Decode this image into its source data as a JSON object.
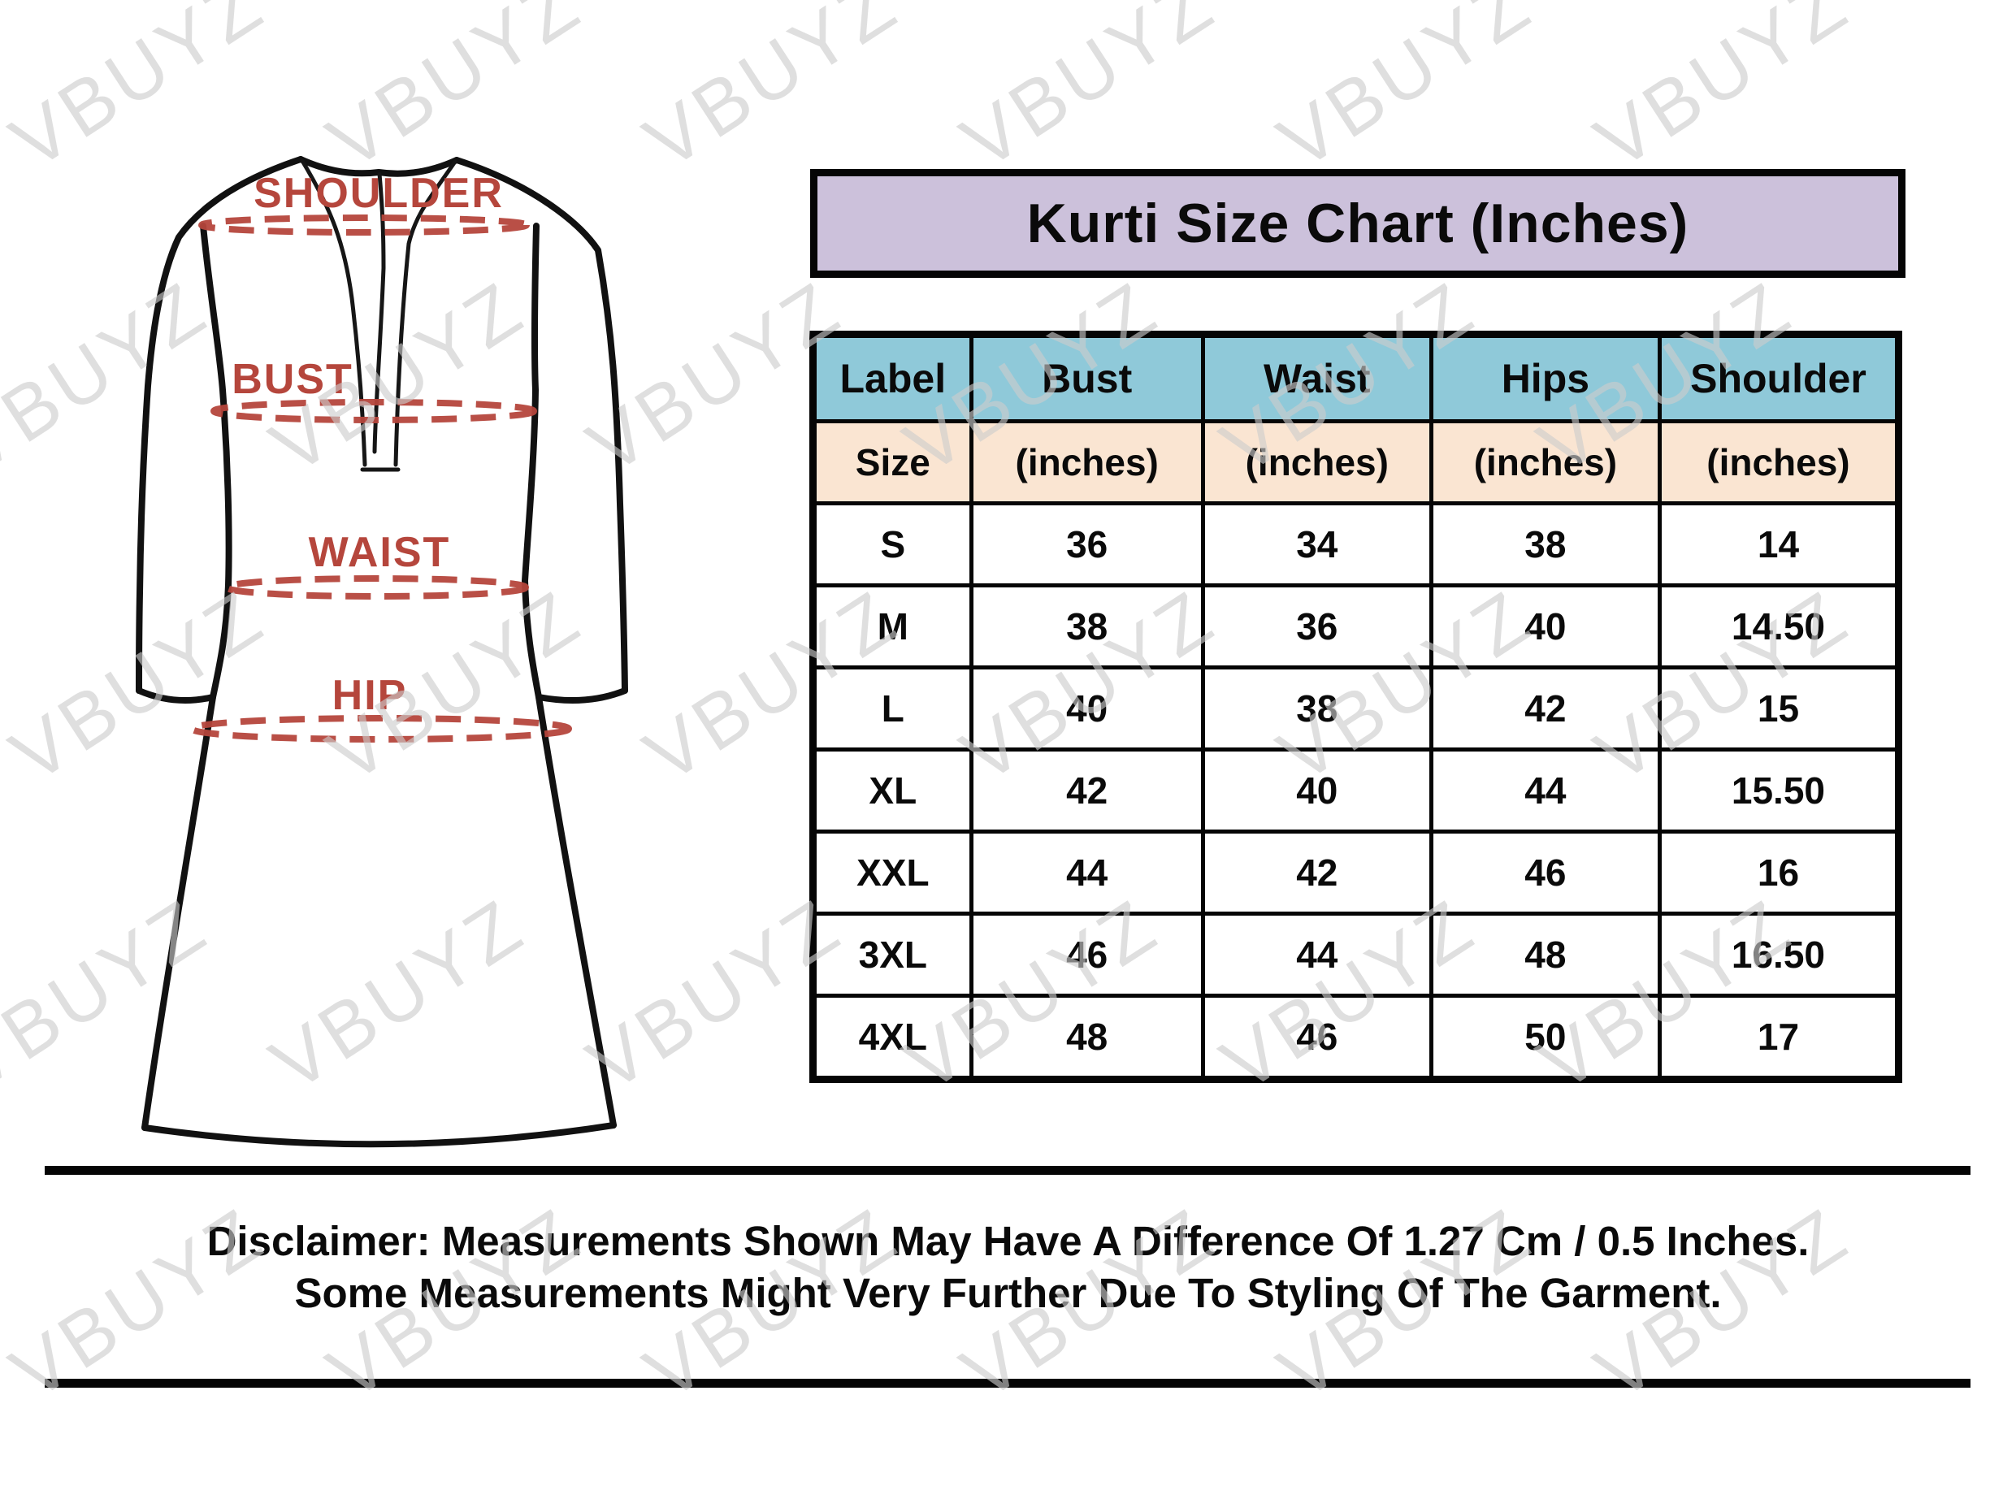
{
  "watermark_text": "VBUYZ",
  "title": "Kurti Size Chart (Inches)",
  "diagram": {
    "shoulder_label": "SHOULDER",
    "bust_label": "BUST",
    "waist_label": "WAIST",
    "hip_label": "HIP"
  },
  "size_chart": {
    "columns": [
      "Label",
      "Bust",
      "Waist",
      "Hips",
      "Shoulder"
    ],
    "subheader": [
      "Size",
      "(inches)",
      "(inches)",
      "(inches)",
      "(inches)"
    ],
    "rows": [
      [
        "S",
        "36",
        "34",
        "38",
        "14"
      ],
      [
        "M",
        "38",
        "36",
        "40",
        "14.50"
      ],
      [
        "L",
        "40",
        "38",
        "42",
        "15"
      ],
      [
        "XL",
        "42",
        "40",
        "44",
        "15.50"
      ],
      [
        "XXL",
        "44",
        "42",
        "46",
        "16"
      ],
      [
        "3XL",
        "46",
        "44",
        "48",
        "16.50"
      ],
      [
        "4XL",
        "48",
        "46",
        "50",
        "17"
      ]
    ]
  },
  "disclaimer": {
    "line1": "Disclaimer: Measurements Shown May Have A Difference Of 1.27 Cm / 0.5 Inches.",
    "line2": "Some Measurements Might Very Further Due To Styling Of The Garment."
  },
  "colors": {
    "title_bg": "#ccc1db",
    "header_bg": "#8fc9d9",
    "subheader_bg": "#fae5d2",
    "border": "#050505",
    "accent_red": "#b5463c",
    "watermark": "#cdcdcd"
  },
  "chart_data": {
    "type": "table",
    "title": "Kurti Size Chart (Inches)",
    "columns": [
      "Label Size",
      "Bust (inches)",
      "Waist (inches)",
      "Hips (inches)",
      "Shoulder (inches)"
    ],
    "rows": [
      [
        "S",
        36,
        34,
        38,
        14
      ],
      [
        "M",
        38,
        36,
        40,
        14.5
      ],
      [
        "L",
        40,
        38,
        42,
        15
      ],
      [
        "XL",
        42,
        40,
        44,
        15.5
      ],
      [
        "XXL",
        44,
        42,
        46,
        16
      ],
      [
        "3XL",
        46,
        44,
        48,
        16.5
      ],
      [
        "4XL",
        48,
        46,
        50,
        17
      ]
    ]
  }
}
